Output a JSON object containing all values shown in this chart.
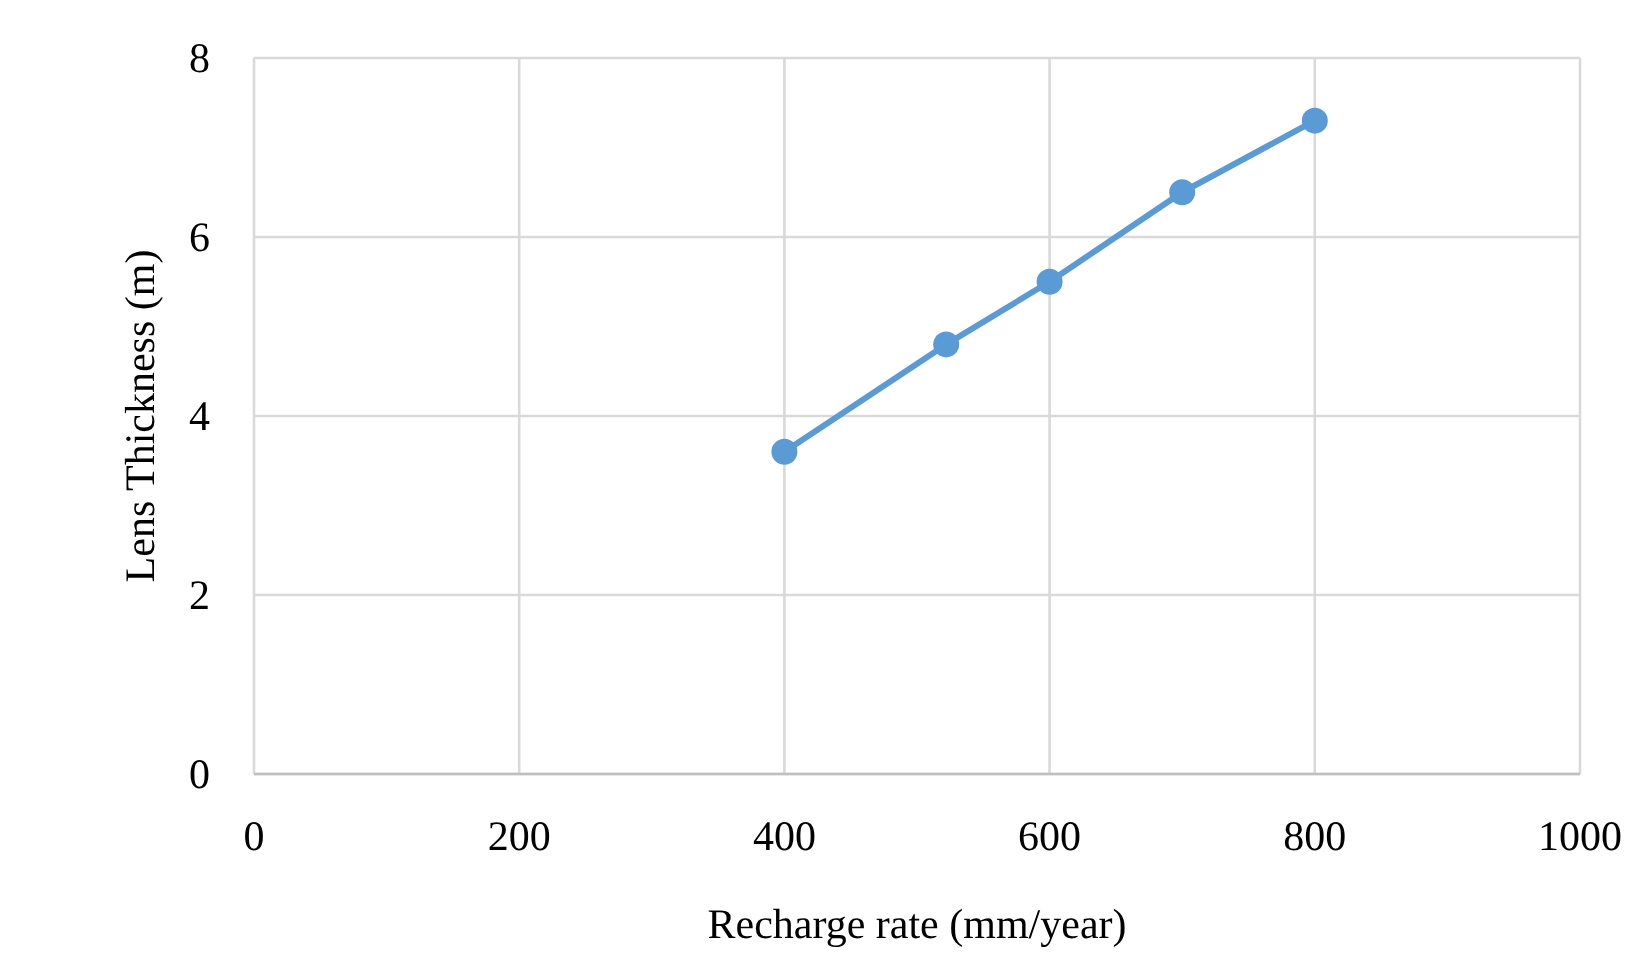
{
  "chart_data": {
    "type": "line",
    "xlabel": "Recharge rate (mm/year)",
    "ylabel": "Lens Thickness (m)",
    "x": [
      400,
      522,
      600,
      700,
      800
    ],
    "series": [
      {
        "color": "#5b9bd5",
        "values": [
          3.6,
          4.8,
          5.5,
          6.5,
          7.3
        ]
      }
    ],
    "xlim": [
      0,
      1000
    ],
    "xticks": [
      0,
      200,
      400,
      600,
      800,
      1000
    ],
    "ylim": [
      0,
      8
    ],
    "yticks": [
      0,
      2,
      4,
      6,
      8
    ],
    "grid": true,
    "marker": "circle",
    "line_style": "solid"
  }
}
